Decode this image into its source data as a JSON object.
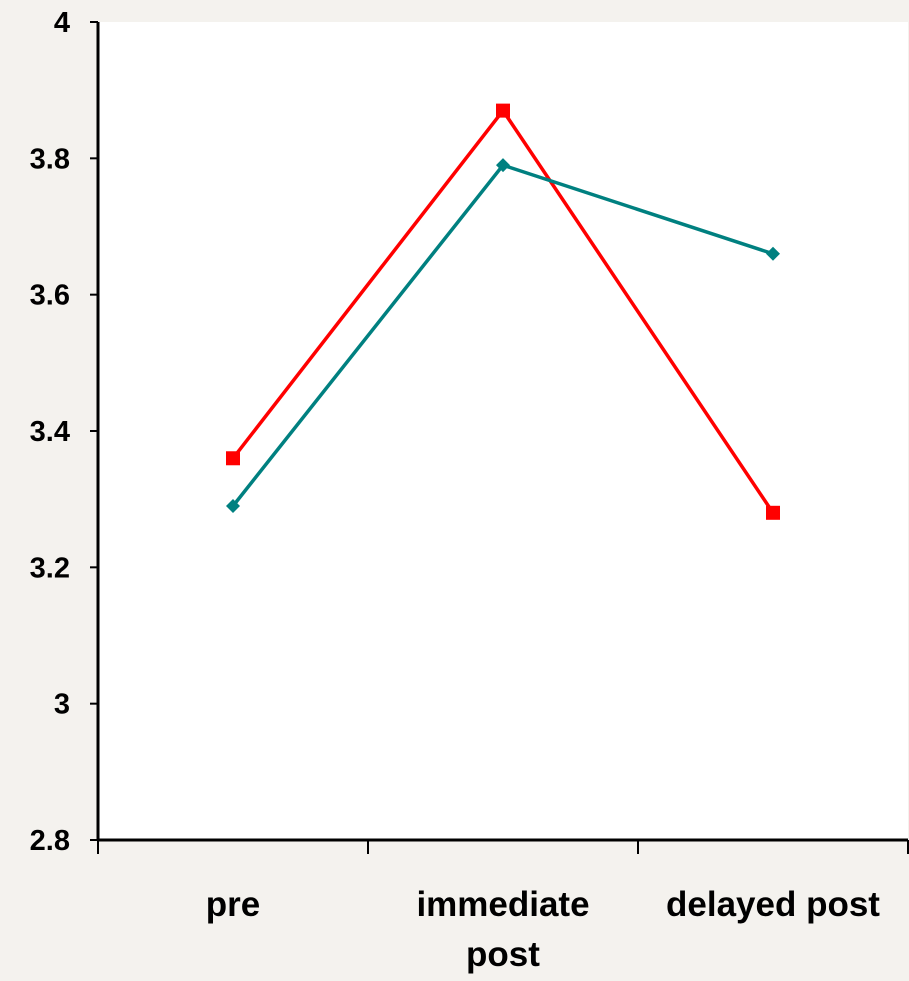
{
  "chart_data": {
    "type": "line",
    "title": "",
    "xlabel": "",
    "ylabel": "",
    "categories": [
      [
        "pre"
      ],
      [
        "immediate",
        "post"
      ],
      [
        "delayed post"
      ]
    ],
    "ylim": [
      2.8,
      4
    ],
    "yticks": [
      "2.8",
      "3",
      "3.2",
      "3.4",
      "3.6",
      "3.8",
      "4"
    ],
    "grid": false,
    "legend": "none",
    "series": [
      {
        "values": [
          3.36,
          3.87,
          3.28
        ],
        "color": "#ff0000",
        "marker": "square"
      },
      {
        "values": [
          3.29,
          3.79,
          3.66
        ],
        "color": "#008080",
        "marker": "diamond"
      }
    ]
  }
}
